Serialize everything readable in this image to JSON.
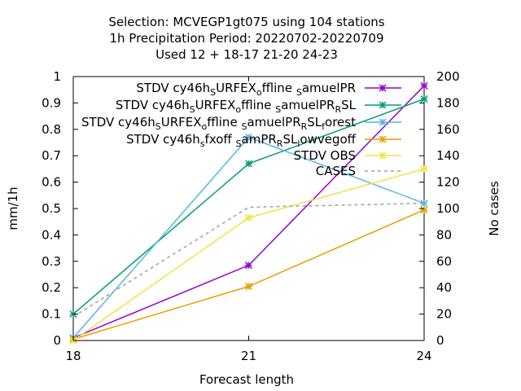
{
  "chart_data": {
    "type": "line",
    "title_lines": [
      "Selection: MCVEGP1gt075 using   104 stations",
      "1h Precipitation   Period: 20220702-20220709",
      "Used  12 + 18-17 21-20 24-23"
    ],
    "xlabel": "Forecast length",
    "ylabel": "mm/1h",
    "y2label": "No cases",
    "x": [
      18,
      21,
      24
    ],
    "xlim": [
      18,
      24
    ],
    "ylim": [
      0,
      1
    ],
    "y2lim": [
      0,
      200
    ],
    "xticks": [
      "18",
      "21",
      "24"
    ],
    "yticks": [
      "0",
      "0.1",
      "0.2",
      "0.3",
      "0.4",
      "0.5",
      "0.6",
      "0.7",
      "0.8",
      "0.9",
      "1"
    ],
    "y2ticks": [
      "0",
      "20",
      "40",
      "60",
      "80",
      "100",
      "120",
      "140",
      "160",
      "180",
      "200"
    ],
    "legend_position": "top-right",
    "series": [
      {
        "name_parts": [
          [
            "STDV cy46h",
            ""
          ],
          [
            "S",
            "sub"
          ],
          [
            "URFEX",
            ""
          ],
          [
            "o",
            "sub"
          ],
          [
            "ffline ",
            ""
          ],
          [
            "S",
            "sub"
          ],
          [
            "amuelPR",
            ""
          ]
        ],
        "color": "#9400d3",
        "marker": "x",
        "dash": "",
        "axis": "y",
        "values": [
          0.01,
          0.285,
          0.965
        ]
      },
      {
        "name_parts": [
          [
            "STDV cy46h",
            ""
          ],
          [
            "S",
            "sub"
          ],
          [
            "URFEX",
            ""
          ],
          [
            "o",
            "sub"
          ],
          [
            "ffline ",
            ""
          ],
          [
            "S",
            "sub"
          ],
          [
            "amuelPR",
            ""
          ],
          [
            "R",
            "sub"
          ],
          [
            "SL",
            ""
          ]
        ],
        "color": "#009e73",
        "marker": "x",
        "dash": "",
        "axis": "y",
        "values": [
          0.1,
          0.67,
          0.915
        ]
      },
      {
        "name_parts": [
          [
            "STDV cy46h",
            ""
          ],
          [
            "S",
            "sub"
          ],
          [
            "URFEX",
            ""
          ],
          [
            "o",
            "sub"
          ],
          [
            "ffline ",
            ""
          ],
          [
            "S",
            "sub"
          ],
          [
            "amuelPR",
            ""
          ],
          [
            "R",
            "sub"
          ],
          [
            "SL",
            ""
          ],
          [
            "f",
            "sub"
          ],
          [
            "orest",
            ""
          ]
        ],
        "color": "#56b4e9",
        "marker": "x",
        "dash": "",
        "axis": "y",
        "values": [
          0.01,
          0.77,
          0.52
        ]
      },
      {
        "name_parts": [
          [
            "STDV cy46h",
            ""
          ],
          [
            "s",
            "sub"
          ],
          [
            "fxoff ",
            ""
          ],
          [
            "S",
            "sub"
          ],
          [
            "amPR",
            ""
          ],
          [
            "R",
            "sub"
          ],
          [
            "SL",
            ""
          ],
          [
            "l",
            "sub"
          ],
          [
            "owvegoff",
            ""
          ]
        ],
        "color": "#e69f00",
        "marker": "x",
        "dash": "",
        "axis": "y",
        "values": [
          0.005,
          0.205,
          0.495
        ]
      },
      {
        "name_parts": [
          [
            "STDV OBS",
            ""
          ]
        ],
        "color": "#f0e442",
        "marker": "x",
        "dash": "",
        "axis": "y",
        "values": [
          0.0,
          0.465,
          0.65
        ]
      },
      {
        "name_parts": [
          [
            "CASES",
            ""
          ]
        ],
        "color": "#a0a0a0",
        "marker": "",
        "dash": "4,4",
        "axis": "y2",
        "values": [
          18,
          101,
          104
        ]
      }
    ]
  }
}
